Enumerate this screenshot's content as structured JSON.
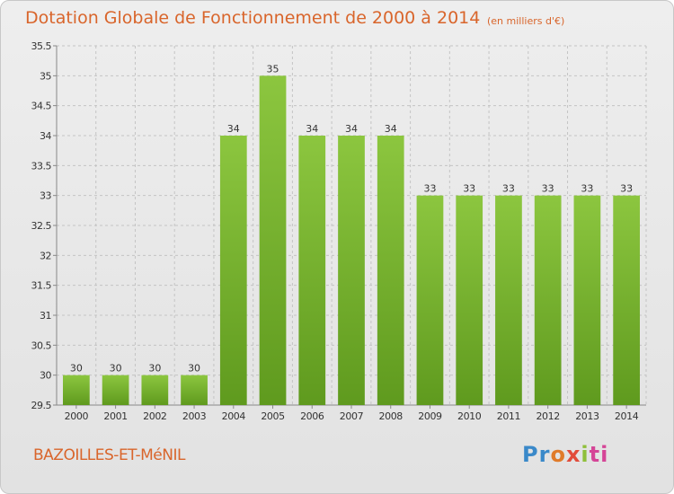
{
  "chart_data": {
    "type": "bar",
    "title": "Dotation Globale de Fonctionnement de 2000 à 2014",
    "subtitle": "(en milliers d'€)",
    "categories": [
      "2000",
      "2001",
      "2002",
      "2003",
      "2004",
      "2005",
      "2006",
      "2007",
      "2008",
      "2009",
      "2010",
      "2011",
      "2012",
      "2013",
      "2014"
    ],
    "values": [
      30,
      30,
      30,
      30,
      34,
      35,
      34,
      34,
      34,
      33,
      33,
      33,
      33,
      33,
      33
    ],
    "ylim": [
      29.5,
      35.5
    ],
    "yticks": [
      "29.5",
      "30",
      "30.5",
      "31",
      "31.5",
      "32",
      "32.5",
      "33",
      "33.5",
      "34",
      "34.5",
      "35",
      "35.5"
    ],
    "grid": true,
    "bar_color": "#8cc63f",
    "bar_color_dark": "#5f9a1e"
  },
  "footer": {
    "commune": "BAZOILLES-ET-MéNIL"
  },
  "logo": {
    "parts": [
      "Pr",
      "o",
      "x",
      "i",
      "ti"
    ]
  }
}
